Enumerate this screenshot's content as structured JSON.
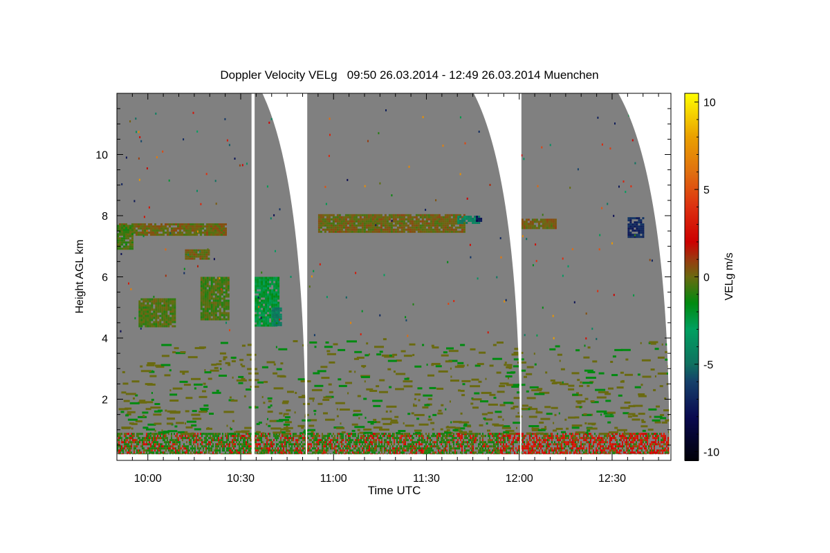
{
  "chart_data": {
    "type": "heatmap",
    "title": "Doppler Velocity VELg   09:50 26.03.2014 - 12:49 26.03.2014 Muenchen",
    "xlabel": "Time UTC",
    "ylabel": "Height AGL km",
    "xlim": [
      "09:50",
      "12:49"
    ],
    "ylim": [
      0,
      12
    ],
    "xticks": [
      "10:00",
      "10:30",
      "11:00",
      "11:30",
      "12:00",
      "12:30"
    ],
    "yticks": [
      2,
      4,
      6,
      8,
      10
    ],
    "colorbar": {
      "label": "VELg m/s",
      "range": [
        -10.5,
        10.5
      ],
      "ticks": [
        -10,
        -5,
        0,
        5,
        10
      ],
      "colors": [
        {
          "v": -10.5,
          "c": "#000008"
        },
        {
          "v": -8,
          "c": "#0a0a50"
        },
        {
          "v": -6,
          "c": "#15406a"
        },
        {
          "v": -5,
          "c": "#107060"
        },
        {
          "v": -3,
          "c": "#00a060"
        },
        {
          "v": -1.5,
          "c": "#008a10"
        },
        {
          "v": 0,
          "c": "#6a6a10"
        },
        {
          "v": 1,
          "c": "#9a3a10"
        },
        {
          "v": 2,
          "c": "#cc0000"
        },
        {
          "v": 4,
          "c": "#dd3010"
        },
        {
          "v": 6,
          "c": "#e07010"
        },
        {
          "v": 8,
          "c": "#eaa000"
        },
        {
          "v": 10.5,
          "c": "#ffff00"
        }
      ]
    },
    "background_color": "#808080",
    "scan_segments": [
      {
        "start": "09:50",
        "end_top": "10:33.5",
        "end_bottom": "10:33.5"
      },
      {
        "start": "10:34.5",
        "end_top": "10:37",
        "end_bottom": "10:51"
      },
      {
        "start": "10:51.5",
        "end_top": "11:45.3",
        "end_bottom": "12:00.3"
      },
      {
        "start": "12:00.7",
        "end_top": "12:32",
        "end_bottom": "12:48.5"
      }
    ],
    "features": [
      {
        "t0": "09:50",
        "t1": "10:25",
        "h0": 7.4,
        "h1": 7.75,
        "v": 0.1
      },
      {
        "t0": "09:50",
        "t1": "09:55",
        "h0": 6.9,
        "h1": 7.7,
        "v": -0.6
      },
      {
        "t0": "10:12",
        "t1": "10:20",
        "h0": 6.6,
        "h1": 6.9,
        "v": 0.1
      },
      {
        "t0": "10:17",
        "t1": "10:26",
        "h0": 4.6,
        "h1": 6.0,
        "v": -0.5
      },
      {
        "t0": "09:57",
        "t1": "10:09",
        "h0": 4.4,
        "h1": 5.3,
        "v": -0.4
      },
      {
        "t0": "10:34.5",
        "t1": "10:42",
        "h0": 4.4,
        "h1": 6.0,
        "v": -2.2
      },
      {
        "t0": "10:40",
        "t1": "10:43",
        "h0": 4.4,
        "h1": 5.0,
        "v": -4.5
      },
      {
        "t0": "10:55",
        "t1": "11:42",
        "h0": 7.45,
        "h1": 8.05,
        "v": 0.1
      },
      {
        "t0": "11:40",
        "t1": "11:47",
        "h0": 7.75,
        "h1": 8.0,
        "v": -4.2
      },
      {
        "t0": "11:46",
        "t1": "11:48",
        "h0": 7.8,
        "h1": 8.0,
        "v": -7.5
      },
      {
        "t0": "12:00.7",
        "t1": "12:12",
        "h0": 7.6,
        "h1": 7.9,
        "v": 0.2
      },
      {
        "t0": "12:35",
        "t1": "12:40",
        "h0": 7.3,
        "h1": 7.95,
        "v": -7
      }
    ],
    "boundary_layer": {
      "h0": 0.2,
      "h1": 0.9,
      "v_range": [
        -2,
        3
      ]
    }
  }
}
